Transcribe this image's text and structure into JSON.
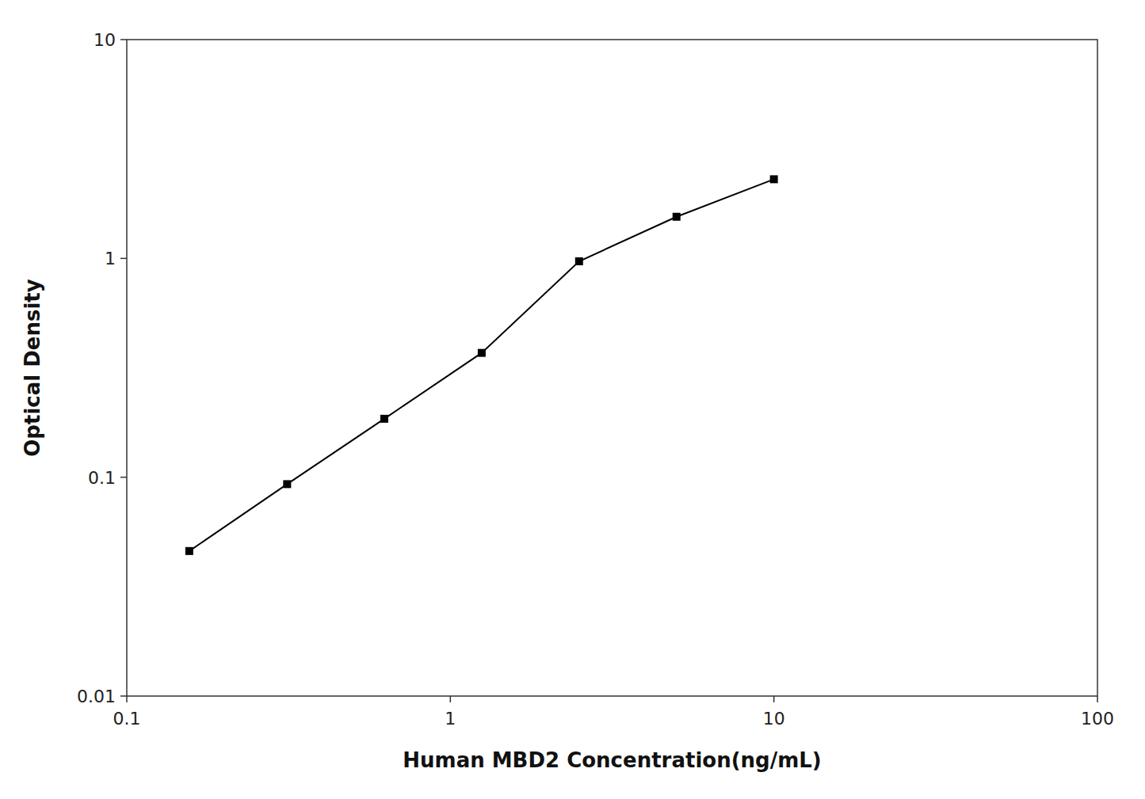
{
  "chart_data": {
    "type": "line",
    "x": [
      0.156,
      0.313,
      0.625,
      1.25,
      2.5,
      5.0,
      10.0
    ],
    "values": [
      0.046,
      0.093,
      0.185,
      0.37,
      0.97,
      1.55,
      2.3
    ],
    "xlabel": "Human MBD2 Concentration(ng/mL)",
    "ylabel": "Optical Density",
    "xlim": [
      0.1,
      100
    ],
    "ylim": [
      0.01,
      10
    ],
    "xticks": [
      0.1,
      1,
      10,
      100
    ],
    "yticks": [
      0.01,
      0.1,
      1,
      10
    ],
    "log": true,
    "grid": false,
    "color": "#000000",
    "marker": "square"
  }
}
